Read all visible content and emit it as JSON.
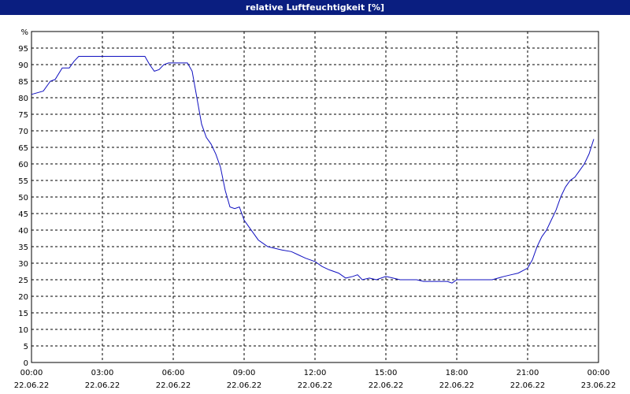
{
  "title": "relative Luftfeuchtigkeit [%]",
  "colors": {
    "titlebar_bg": "#0a1e80",
    "titlebar_text": "#ffffff",
    "line": "#1010c0",
    "grid": "#000000",
    "background": "#ffffff"
  },
  "chart_data": {
    "type": "line",
    "title": "relative Luftfeuchtigkeit [%]",
    "ylabel": "%",
    "xlabel": "",
    "ylim": [
      0,
      100
    ],
    "xlim": [
      0,
      24
    ],
    "grid": true,
    "y_ticks": [
      0,
      5,
      10,
      15,
      20,
      25,
      30,
      35,
      40,
      45,
      50,
      55,
      60,
      65,
      70,
      75,
      80,
      85,
      90,
      95
    ],
    "x_ticks": [
      {
        "time": "00:00",
        "date": "22.06.22"
      },
      {
        "time": "03:00",
        "date": "22.06.22"
      },
      {
        "time": "06:00",
        "date": "22.06.22"
      },
      {
        "time": "09:00",
        "date": "22.06.22"
      },
      {
        "time": "12:00",
        "date": "22.06.22"
      },
      {
        "time": "15:00",
        "date": "22.06.22"
      },
      {
        "time": "18:00",
        "date": "22.06.22"
      },
      {
        "time": "21:00",
        "date": "22.06.22"
      },
      {
        "time": "00:00",
        "date": "23.06.22"
      }
    ],
    "series": [
      {
        "x": [
          0.0,
          0.5,
          0.8,
          1.0,
          1.3,
          1.6,
          1.8,
          2.0,
          2.2,
          2.5,
          3.0,
          3.5,
          4.0,
          4.5,
          4.8,
          5.0,
          5.2,
          5.4,
          5.6,
          5.8,
          6.0,
          6.3,
          6.6,
          6.8,
          7.0,
          7.2,
          7.4,
          7.6,
          7.8,
          8.0,
          8.2,
          8.4,
          8.6,
          8.8,
          9.0,
          9.2,
          9.4,
          9.6,
          9.8,
          10.0,
          10.3,
          10.6,
          11.0,
          11.3,
          11.6,
          12.0,
          12.3,
          12.6,
          13.0,
          13.3,
          13.6,
          13.8,
          14.0,
          14.3,
          14.6,
          15.0,
          15.3,
          15.6,
          16.0,
          16.3,
          16.6,
          17.0,
          17.3,
          17.6,
          17.8,
          18.0,
          18.5,
          19.0,
          19.5,
          20.0,
          20.3,
          20.6,
          21.0,
          21.2,
          21.4,
          21.6,
          21.8,
          22.0,
          22.2,
          22.4,
          22.6,
          22.8,
          23.0,
          23.2,
          23.4,
          23.6,
          23.8
        ],
        "y": [
          81,
          82,
          85,
          85.5,
          89,
          89,
          91,
          92.5,
          92.5,
          92.5,
          92.5,
          92.5,
          92.5,
          92.5,
          92.5,
          90,
          88,
          88.5,
          90,
          90.5,
          90.5,
          90.5,
          90.5,
          88,
          80,
          72,
          68,
          66,
          63,
          59,
          52,
          47,
          46.5,
          47,
          43,
          41,
          39,
          37,
          36,
          35,
          34.5,
          34,
          33.5,
          32.5,
          31.5,
          30.5,
          29,
          28,
          27,
          25.5,
          26,
          26.5,
          25,
          25.5,
          25,
          26,
          25.5,
          25,
          25,
          25,
          24.5,
          24.5,
          24.5,
          24.5,
          24,
          25,
          25,
          25,
          25,
          26,
          26.5,
          27,
          28.5,
          31,
          35,
          38,
          40,
          43,
          46,
          50,
          53,
          55,
          56,
          58,
          60,
          63,
          67.5
        ]
      }
    ]
  }
}
